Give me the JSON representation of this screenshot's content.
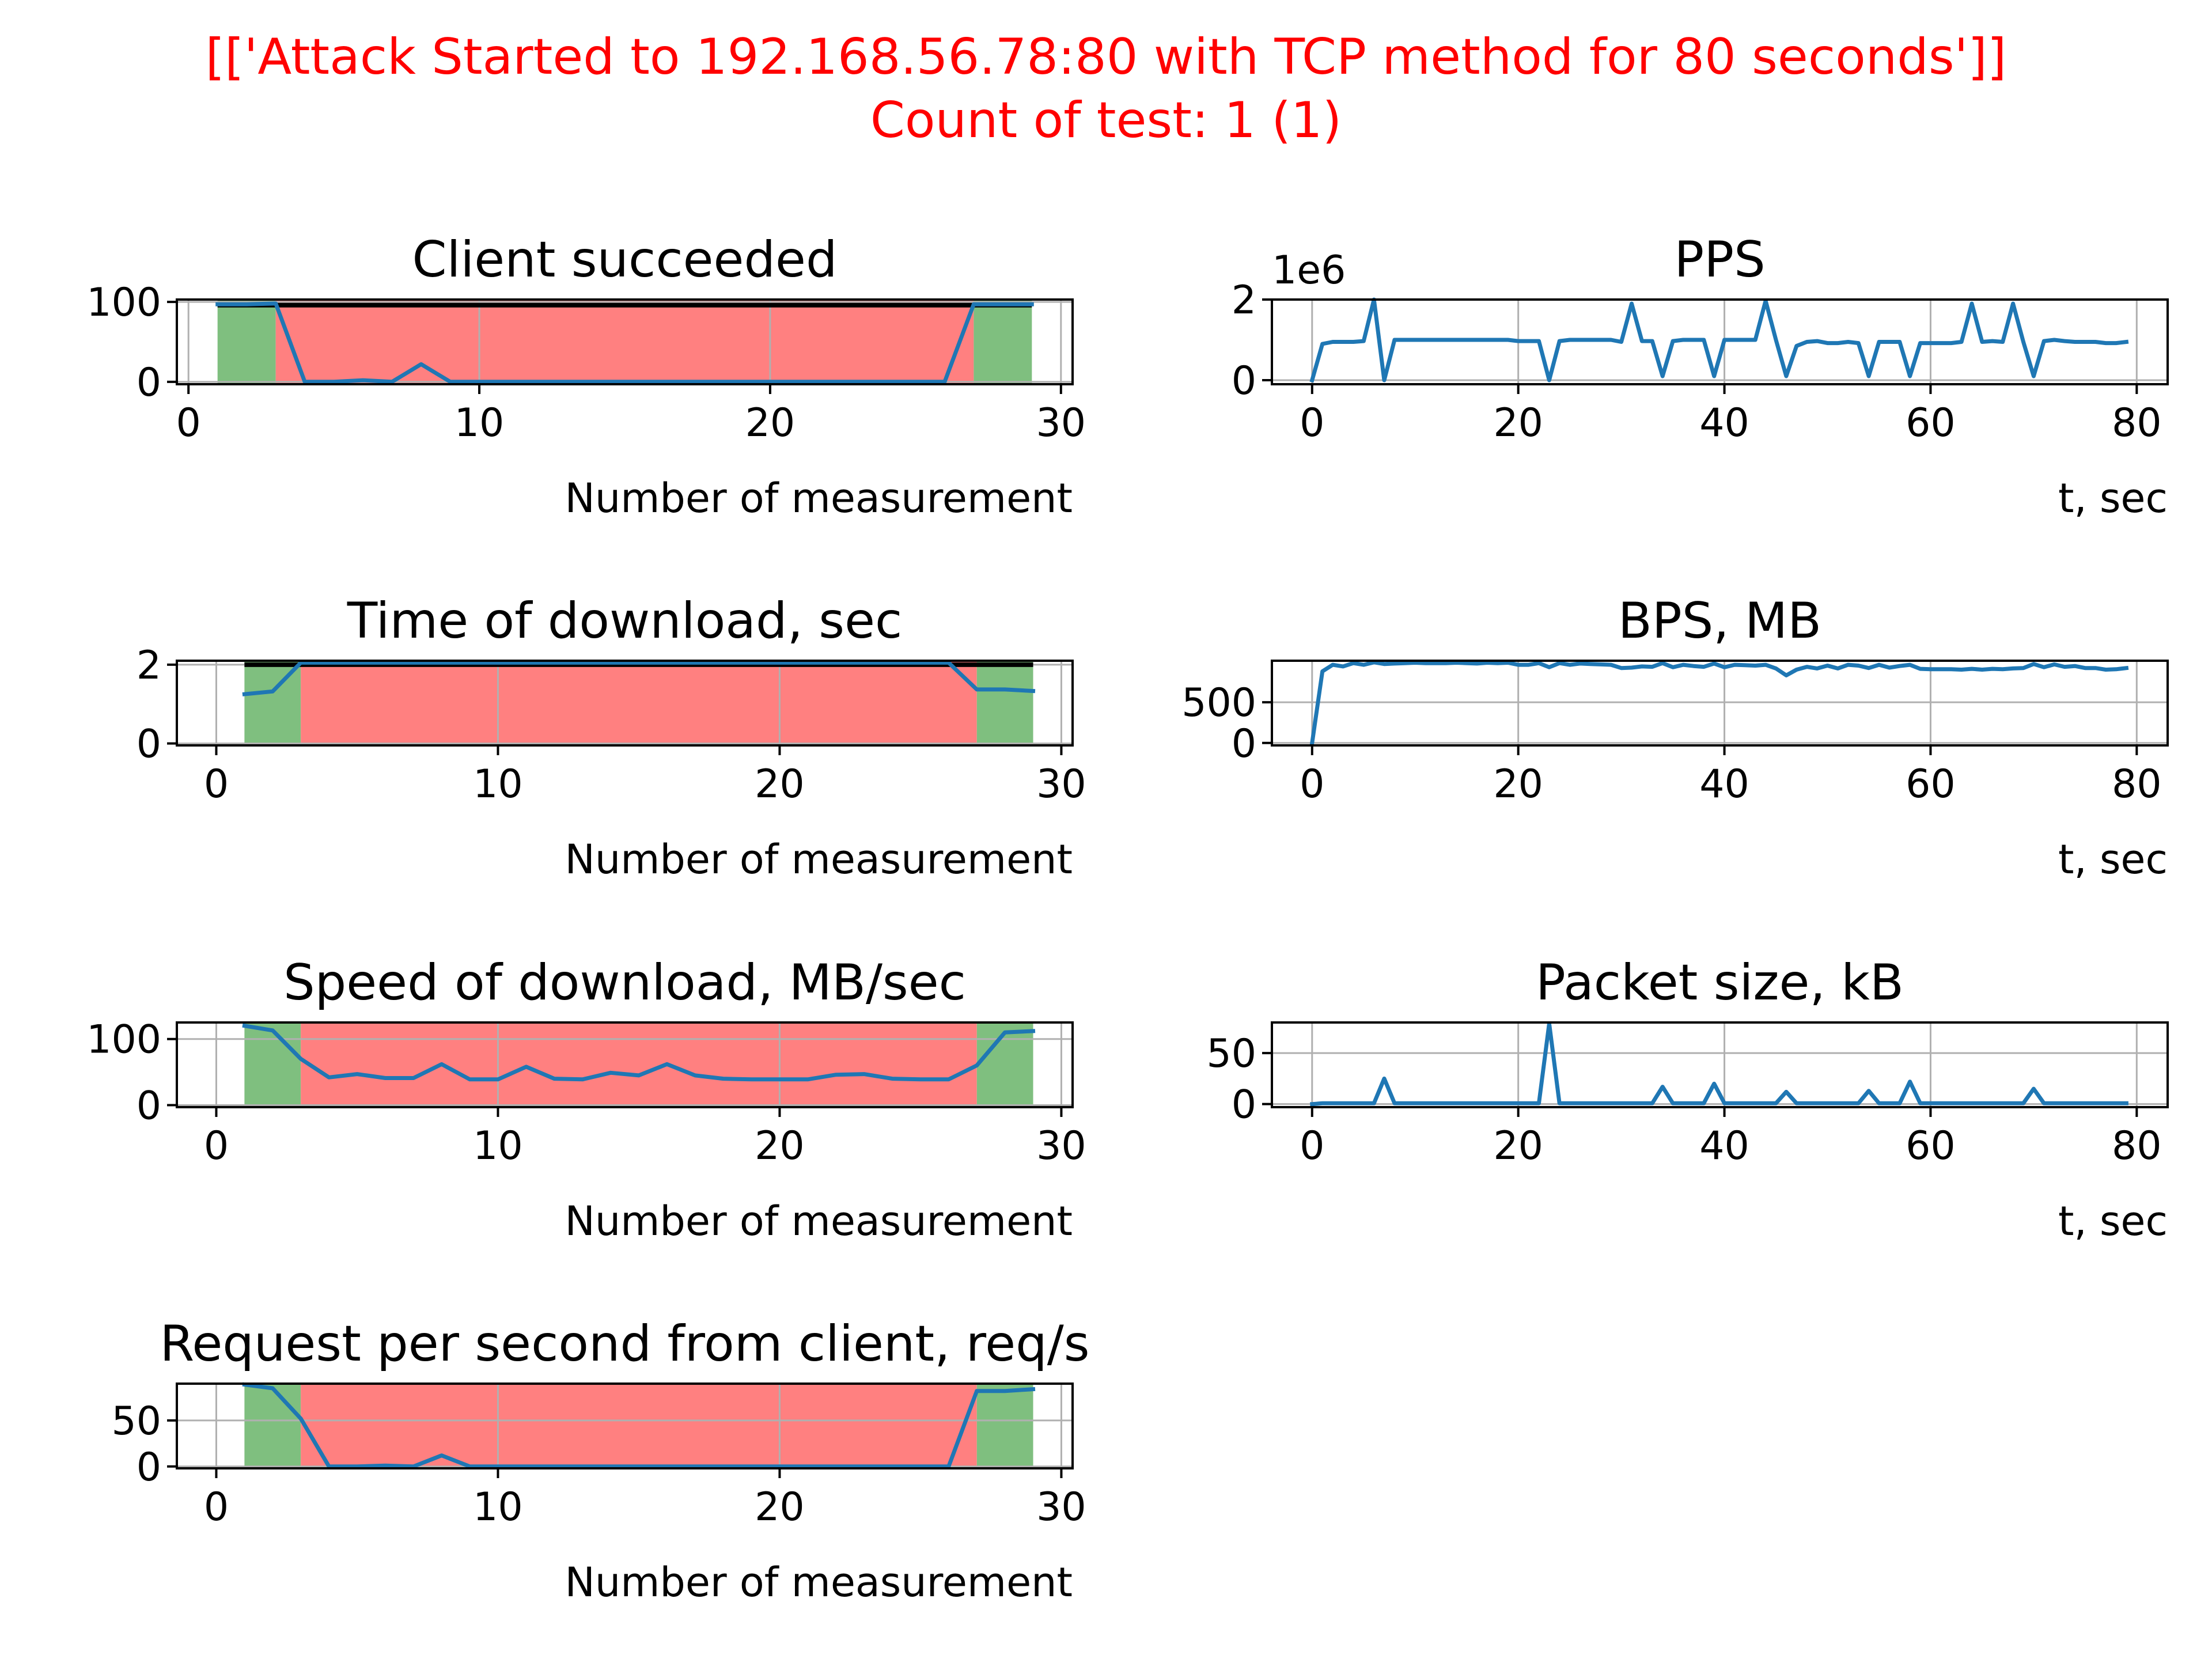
{
  "figure": {
    "suptitle_line1": "[['Attack Started to 192.168.56.78:80 with TCP method for 80 seconds']]",
    "suptitle_line2": "Count of test: 1 (1)",
    "title_color": "#ff0000",
    "line_color": "#1f77b4",
    "ok_color": "#7fbf7f",
    "attack_color": "#ff8080",
    "threshold_color": "#000000"
  },
  "chart_data": [
    {
      "id": "client-succeeded",
      "type": "line",
      "title": "Client succeeded",
      "xlabel": "Number of measurement",
      "ylabel": "",
      "grid": true,
      "xlim": [
        -0.4,
        30.4
      ],
      "ylim": [
        -3,
        103
      ],
      "xticks": [
        0,
        10,
        20,
        30
      ],
      "yticks": [
        0,
        100
      ],
      "ytick_labels": [
        "0",
        "100"
      ],
      "threshold": {
        "x": [
          1,
          29
        ],
        "value": 96
      },
      "regions": [
        {
          "kind": "normal",
          "x": [
            1,
            3
          ]
        },
        {
          "kind": "attack",
          "x": [
            3,
            27
          ]
        },
        {
          "kind": "normal",
          "x": [
            27,
            29
          ]
        }
      ],
      "x": [
        1,
        2,
        3,
        4,
        5,
        6,
        7,
        8,
        9,
        10,
        11,
        12,
        13,
        14,
        15,
        16,
        17,
        18,
        19,
        20,
        21,
        22,
        23,
        24,
        25,
        26,
        27,
        28,
        29
      ],
      "values": [
        97,
        97,
        98,
        0,
        0,
        2,
        0,
        22,
        0,
        0,
        0,
        0,
        0,
        0,
        0,
        0,
        0,
        0,
        0,
        0,
        0,
        0,
        0,
        0,
        0,
        0,
        97,
        97,
        97
      ]
    },
    {
      "id": "pps",
      "type": "line",
      "title": "PPS",
      "xlabel": "t, sec",
      "ylabel": "",
      "grid": true,
      "offset_text": "1e6",
      "xlim": [
        -3.9,
        83.0
      ],
      "ylim": [
        -0.1,
        2.0
      ],
      "xticks": [
        0,
        20,
        40,
        60,
        80
      ],
      "yticks": [
        0,
        2
      ],
      "ytick_labels": [
        "0",
        "2"
      ],
      "x": [
        0,
        1,
        2,
        3,
        4,
        5,
        6,
        7,
        8,
        9,
        10,
        11,
        12,
        13,
        14,
        15,
        16,
        17,
        18,
        19,
        20,
        21,
        22,
        23,
        24,
        25,
        26,
        27,
        28,
        29,
        30,
        31,
        32,
        33,
        34,
        35,
        36,
        37,
        38,
        39,
        40,
        41,
        42,
        43,
        44,
        45,
        46,
        47,
        48,
        49,
        50,
        51,
        52,
        53,
        54,
        55,
        56,
        57,
        58,
        59,
        60,
        61,
        62,
        63,
        64,
        65,
        66,
        67,
        68,
        69,
        70,
        71,
        72,
        73,
        74,
        75,
        76,
        77,
        78,
        79
      ],
      "values": [
        0,
        0.9,
        0.95,
        0.95,
        0.95,
        0.97,
        2.0,
        0,
        1.0,
        1.0,
        1.0,
        1.0,
        1.0,
        1.0,
        1.0,
        1.0,
        1.0,
        1.0,
        1.0,
        1.0,
        0.97,
        0.97,
        0.97,
        0,
        0.97,
        1.0,
        1.0,
        1.0,
        1.0,
        1.0,
        0.95,
        1.9,
        0.97,
        0.97,
        0.1,
        0.97,
        1.0,
        1.0,
        1.0,
        0.1,
        1.0,
        1.0,
        1.0,
        1.0,
        1.97,
        1.0,
        0.1,
        0.85,
        0.95,
        0.97,
        0.92,
        0.92,
        0.95,
        0.92,
        0.1,
        0.95,
        0.95,
        0.95,
        0.1,
        0.92,
        0.92,
        0.92,
        0.92,
        0.95,
        1.9,
        0.95,
        0.97,
        0.95,
        1.9,
        0.95,
        0.1,
        0.97,
        1.0,
        0.97,
        0.95,
        0.95,
        0.95,
        0.92,
        0.92,
        0.95
      ]
    },
    {
      "id": "time-of-download",
      "type": "line",
      "title": "Time of download, sec",
      "xlabel": "Number of measurement",
      "ylabel": "",
      "grid": true,
      "xlim": [
        -1.4,
        30.4
      ],
      "ylim": [
        -0.05,
        2.1
      ],
      "xticks": [
        0,
        10,
        20,
        30
      ],
      "yticks": [
        0,
        2
      ],
      "ytick_labels": [
        "0",
        "2"
      ],
      "threshold": {
        "x": [
          1,
          29
        ],
        "value": 2.0
      },
      "regions": [
        {
          "kind": "normal",
          "x": [
            1,
            3
          ]
        },
        {
          "kind": "attack",
          "x": [
            3,
            27
          ]
        },
        {
          "kind": "normal",
          "x": [
            27,
            29
          ]
        }
      ],
      "x": [
        1,
        2,
        3,
        4,
        5,
        6,
        7,
        8,
        9,
        10,
        11,
        12,
        13,
        14,
        15,
        16,
        17,
        18,
        19,
        20,
        21,
        22,
        23,
        24,
        25,
        26,
        27,
        28,
        29
      ],
      "values": [
        1.25,
        1.32,
        2.05,
        2.05,
        2.05,
        2.05,
        2.05,
        2.05,
        2.05,
        2.05,
        2.05,
        2.05,
        2.05,
        2.05,
        2.05,
        2.05,
        2.05,
        2.05,
        2.05,
        2.05,
        2.05,
        2.05,
        2.05,
        2.05,
        2.05,
        2.05,
        1.37,
        1.37,
        1.33
      ]
    },
    {
      "id": "bps",
      "type": "line",
      "title": "BPS, MB",
      "xlabel": "t, sec",
      "ylabel": "",
      "grid": true,
      "xlim": [
        -3.9,
        83.0
      ],
      "ylim": [
        -30,
        1010
      ],
      "xticks": [
        0,
        20,
        40,
        60,
        80
      ],
      "yticks": [
        0,
        500
      ],
      "ytick_labels": [
        "0",
        "500"
      ],
      "x": [
        0,
        1,
        2,
        3,
        4,
        5,
        6,
        7,
        8,
        9,
        10,
        11,
        12,
        13,
        14,
        15,
        16,
        17,
        18,
        19,
        20,
        21,
        22,
        23,
        24,
        25,
        26,
        27,
        28,
        29,
        30,
        31,
        32,
        33,
        34,
        35,
        36,
        37,
        38,
        39,
        40,
        41,
        42,
        43,
        44,
        45,
        46,
        47,
        48,
        49,
        50,
        51,
        52,
        53,
        54,
        55,
        56,
        57,
        58,
        59,
        60,
        61,
        62,
        63,
        64,
        65,
        66,
        67,
        68,
        69,
        70,
        71,
        72,
        73,
        74,
        75,
        76,
        77,
        78,
        79
      ],
      "values": [
        0,
        880,
        960,
        940,
        980,
        960,
        990,
        970,
        975,
        980,
        985,
        980,
        980,
        980,
        985,
        980,
        975,
        985,
        980,
        985,
        960,
        960,
        980,
        930,
        980,
        960,
        975,
        970,
        965,
        960,
        920,
        925,
        940,
        935,
        980,
        930,
        960,
        945,
        935,
        975,
        930,
        960,
        955,
        950,
        960,
        915,
        830,
        900,
        935,
        915,
        950,
        915,
        960,
        950,
        920,
        960,
        925,
        945,
        960,
        910,
        905,
        905,
        905,
        900,
        910,
        900,
        910,
        905,
        915,
        920,
        970,
        930,
        965,
        935,
        945,
        920,
        920,
        900,
        905,
        920
      ]
    },
    {
      "id": "speed-of-download",
      "type": "line",
      "title": "Speed of download, MB/sec",
      "xlabel": "Number of measurement",
      "ylabel": "",
      "grid": true,
      "xlim": [
        -1.4,
        30.4
      ],
      "ylim": [
        -3,
        125
      ],
      "xticks": [
        0,
        10,
        20,
        30
      ],
      "yticks": [
        0,
        100
      ],
      "ytick_labels": [
        "0",
        "100"
      ],
      "regions": [
        {
          "kind": "normal",
          "x": [
            1,
            3
          ]
        },
        {
          "kind": "attack",
          "x": [
            3,
            27
          ]
        },
        {
          "kind": "normal",
          "x": [
            27,
            29
          ]
        }
      ],
      "x": [
        1,
        2,
        3,
        4,
        5,
        6,
        7,
        8,
        9,
        10,
        11,
        12,
        13,
        14,
        15,
        16,
        17,
        18,
        19,
        20,
        21,
        22,
        23,
        24,
        25,
        26,
        27,
        28,
        29
      ],
      "values": [
        120,
        113,
        70,
        42,
        47,
        41,
        41,
        62,
        39,
        39,
        58,
        40,
        39,
        49,
        45,
        62,
        45,
        40,
        39,
        39,
        39,
        46,
        47,
        40,
        39,
        39,
        60,
        110,
        112
      ]
    },
    {
      "id": "packet-size",
      "type": "line",
      "title": "Packet size, kB",
      "xlabel": "t, sec",
      "ylabel": "",
      "grid": true,
      "xlim": [
        -3.9,
        83.0
      ],
      "ylim": [
        -3,
        80
      ],
      "xticks": [
        0,
        20,
        40,
        60,
        80
      ],
      "yticks": [
        0,
        50
      ],
      "ytick_labels": [
        "0",
        "50"
      ],
      "x": [
        0,
        1,
        2,
        3,
        4,
        5,
        6,
        7,
        8,
        9,
        10,
        11,
        12,
        13,
        14,
        15,
        16,
        17,
        18,
        19,
        20,
        21,
        22,
        23,
        24,
        25,
        26,
        27,
        28,
        29,
        30,
        31,
        32,
        33,
        34,
        35,
        36,
        37,
        38,
        39,
        40,
        41,
        42,
        43,
        44,
        45,
        46,
        47,
        48,
        49,
        50,
        51,
        52,
        53,
        54,
        55,
        56,
        57,
        58,
        59,
        60,
        61,
        62,
        63,
        64,
        65,
        66,
        67,
        68,
        69,
        70,
        71,
        72,
        73,
        74,
        75,
        76,
        77,
        78,
        79
      ],
      "values": [
        0,
        0.8,
        0.8,
        0.8,
        0.8,
        0.8,
        0.8,
        25,
        0.8,
        0.8,
        0.8,
        0.8,
        0.8,
        0.8,
        0.8,
        0.8,
        0.8,
        0.8,
        0.8,
        0.8,
        0.8,
        0.8,
        0.8,
        79,
        0.8,
        0.8,
        0.8,
        0.8,
        0.8,
        0.8,
        0.8,
        0.8,
        0.8,
        0.8,
        17,
        0.8,
        0.8,
        0.8,
        0.8,
        20,
        0.8,
        0.8,
        0.8,
        0.8,
        0.8,
        0.8,
        12,
        0.8,
        0.8,
        0.8,
        0.8,
        0.8,
        0.8,
        0.8,
        13,
        0.8,
        0.8,
        0.8,
        22,
        0.8,
        0.8,
        0.8,
        0.8,
        0.8,
        0.8,
        0.8,
        0.8,
        0.8,
        0.8,
        0.8,
        15,
        0.8,
        0.8,
        0.8,
        0.8,
        0.8,
        0.8,
        0.8,
        0.8,
        0.8
      ]
    },
    {
      "id": "requests-per-second",
      "type": "line",
      "title": "Request per second from client, req/s",
      "xlabel": "Number of measurement",
      "ylabel": "",
      "grid": true,
      "xlim": [
        -1.4,
        30.4
      ],
      "ylim": [
        -2,
        90
      ],
      "xticks": [
        0,
        10,
        20,
        30
      ],
      "yticks": [
        0,
        50
      ],
      "ytick_labels": [
        "0",
        "50"
      ],
      "regions": [
        {
          "kind": "normal",
          "x": [
            1,
            3
          ]
        },
        {
          "kind": "attack",
          "x": [
            3,
            27
          ]
        },
        {
          "kind": "normal",
          "x": [
            27,
            29
          ]
        }
      ],
      "x": [
        1,
        2,
        3,
        4,
        5,
        6,
        7,
        8,
        9,
        10,
        11,
        12,
        13,
        14,
        15,
        16,
        17,
        18,
        19,
        20,
        21,
        22,
        23,
        24,
        25,
        26,
        27,
        28,
        29
      ],
      "values": [
        89,
        85,
        52,
        0,
        0,
        1,
        0,
        12,
        0,
        0,
        0,
        0,
        0,
        0,
        0,
        0,
        0,
        0,
        0,
        0,
        0,
        0,
        0,
        0,
        0,
        0,
        82,
        82,
        84
      ]
    }
  ]
}
